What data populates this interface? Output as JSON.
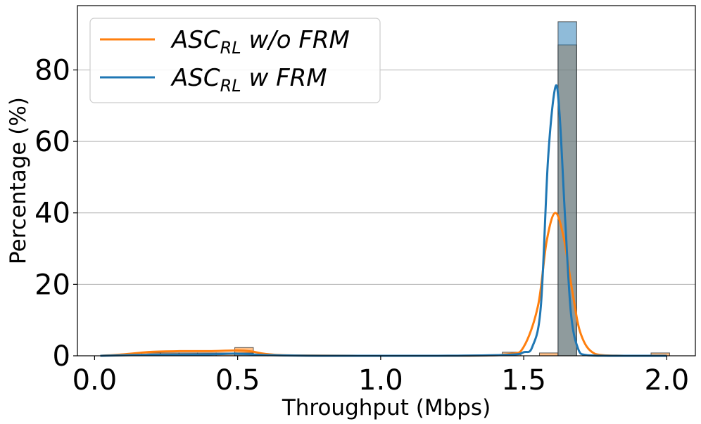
{
  "chart_data": {
    "type": "histogram+kde",
    "xlabel": "Throughput (Mbps)",
    "ylabel": "Percentage (%)",
    "xlim": [
      -0.06,
      2.1
    ],
    "ylim": [
      0,
      98
    ],
    "xticks": [
      0.0,
      0.5,
      1.0,
      1.5,
      2.0
    ],
    "xtick_labels": [
      "0.0",
      "0.5",
      "1.0",
      "1.5",
      "2.0"
    ],
    "yticks": [
      0,
      20,
      40,
      60,
      80
    ],
    "ytick_labels": [
      "0",
      "20",
      "40",
      "60",
      "80"
    ],
    "grid": "y",
    "legend_position": "upper-left",
    "series": [
      {
        "name": "ASC_RL w/o FRM",
        "name_main": "ASC",
        "name_sub": "RL",
        "name_tail": " w/o FRM",
        "color": "#ff7f0e",
        "hist_bins": [
          {
            "x0": 0.165,
            "x1": 0.23,
            "value": 0.8
          },
          {
            "x0": 0.23,
            "x1": 0.295,
            "value": 0.8
          },
          {
            "x0": 0.295,
            "x1": 0.36,
            "value": 0.8
          },
          {
            "x0": 0.36,
            "x1": 0.425,
            "value": 0.8
          },
          {
            "x0": 0.425,
            "x1": 0.49,
            "value": 0.8
          },
          {
            "x0": 0.49,
            "x1": 0.555,
            "value": 2.3
          },
          {
            "x0": 1.425,
            "x1": 1.49,
            "value": 1.0
          },
          {
            "x0": 1.555,
            "x1": 1.62,
            "value": 0.8
          },
          {
            "x0": 1.62,
            "x1": 1.685,
            "value": 87.0
          },
          {
            "x0": 1.945,
            "x1": 2.01,
            "value": 0.8
          }
        ],
        "kde": {
          "x": [
            0.02,
            0.1,
            0.2,
            0.3,
            0.4,
            0.5,
            0.55,
            0.6,
            0.7,
            1.0,
            1.3,
            1.45,
            1.5,
            1.55,
            1.58,
            1.61,
            1.64,
            1.67,
            1.7,
            1.75,
            1.85,
            2.0
          ],
          "y": [
            0.0,
            0.4,
            1.1,
            1.3,
            1.3,
            1.5,
            1.2,
            0.5,
            0.1,
            0.0,
            0.0,
            0.5,
            2.5,
            14.0,
            32.0,
            40.0,
            33.0,
            18.0,
            6.0,
            0.5,
            0.0,
            0.0
          ]
        }
      },
      {
        "name": "ASC_RL w FRM",
        "name_main": "ASC",
        "name_sub": "RL",
        "name_tail": " w FRM",
        "color": "#1f77b4",
        "hist_bins": [
          {
            "x0": 0.49,
            "x1": 0.555,
            "value": 0.8
          },
          {
            "x0": 1.62,
            "x1": 1.685,
            "value": 93.5
          }
        ],
        "kde": {
          "x": [
            0.02,
            0.2,
            0.4,
            0.5,
            0.6,
            0.8,
            1.2,
            1.45,
            1.5,
            1.53,
            1.56,
            1.585,
            1.61,
            1.625,
            1.645,
            1.665,
            1.69,
            1.72,
            1.8,
            2.0
          ],
          "y": [
            0.0,
            0.3,
            0.4,
            0.6,
            0.2,
            0.0,
            0.0,
            0.3,
            1.0,
            2.5,
            14.0,
            55.0,
            75.0,
            68.0,
            38.0,
            12.0,
            2.0,
            0.2,
            0.0,
            0.0
          ]
        }
      }
    ]
  }
}
